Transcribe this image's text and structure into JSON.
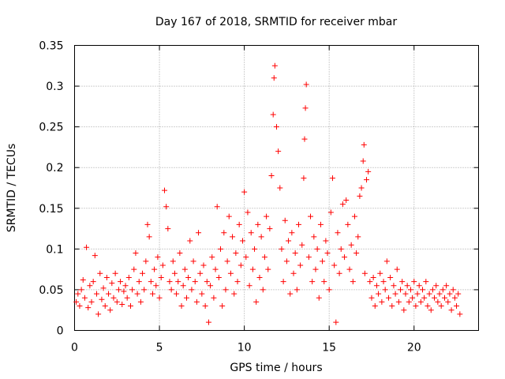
{
  "chart_data": {
    "type": "scatter",
    "title": "Day 167 of 2018, SRMTID for receiver mbar",
    "xlabel": "GPS time / hours",
    "ylabel": "SRMTID / TECUs",
    "xlim": [
      0,
      23.8
    ],
    "ylim": [
      0,
      0.35
    ],
    "xticks": [
      0,
      5,
      10,
      15,
      20
    ],
    "xtick_labels": [
      "0",
      "5",
      "10",
      "15",
      "20"
    ],
    "yticks": [
      0,
      0.05,
      0.1,
      0.15,
      0.2,
      0.25,
      0.3,
      0.35
    ],
    "ytick_labels": [
      "0",
      "0.05",
      "0.1",
      "0.15",
      "0.2",
      "0.25",
      "0.3",
      "0.35"
    ],
    "grid": true,
    "marker": "+",
    "color": "#ff0000",
    "series": [
      {
        "name": "SRMTID",
        "points": [
          [
            0.1,
            0.035
          ],
          [
            0.2,
            0.045
          ],
          [
            0.3,
            0.03
          ],
          [
            0.4,
            0.05
          ],
          [
            0.5,
            0.062
          ],
          [
            0.6,
            0.04
          ],
          [
            0.7,
            0.102
          ],
          [
            0.8,
            0.028
          ],
          [
            0.9,
            0.055
          ],
          [
            1.0,
            0.035
          ],
          [
            1.1,
            0.06
          ],
          [
            1.2,
            0.092
          ],
          [
            1.3,
            0.045
          ],
          [
            1.4,
            0.02
          ],
          [
            1.5,
            0.07
          ],
          [
            1.6,
            0.038
          ],
          [
            1.7,
            0.052
          ],
          [
            1.8,
            0.03
          ],
          [
            1.9,
            0.065
          ],
          [
            2.0,
            0.045
          ],
          [
            2.1,
            0.025
          ],
          [
            2.2,
            0.058
          ],
          [
            2.3,
            0.04
          ],
          [
            2.4,
            0.07
          ],
          [
            2.5,
            0.035
          ],
          [
            2.6,
            0.05
          ],
          [
            2.7,
            0.06
          ],
          [
            2.8,
            0.032
          ],
          [
            2.9,
            0.048
          ],
          [
            3.0,
            0.055
          ],
          [
            3.1,
            0.04
          ],
          [
            3.2,
            0.065
          ],
          [
            3.3,
            0.03
          ],
          [
            3.4,
            0.05
          ],
          [
            3.5,
            0.075
          ],
          [
            3.6,
            0.095
          ],
          [
            3.7,
            0.045
          ],
          [
            3.8,
            0.06
          ],
          [
            3.9,
            0.035
          ],
          [
            4.0,
            0.07
          ],
          [
            4.1,
            0.05
          ],
          [
            4.2,
            0.085
          ],
          [
            4.3,
            0.13
          ],
          [
            4.4,
            0.115
          ],
          [
            4.5,
            0.06
          ],
          [
            4.6,
            0.045
          ],
          [
            4.7,
            0.075
          ],
          [
            4.8,
            0.055
          ],
          [
            4.9,
            0.09
          ],
          [
            5.0,
            0.04
          ],
          [
            5.1,
            0.065
          ],
          [
            5.2,
            0.08
          ],
          [
            5.3,
            0.172
          ],
          [
            5.4,
            0.152
          ],
          [
            5.5,
            0.125
          ],
          [
            5.6,
            0.06
          ],
          [
            5.7,
            0.05
          ],
          [
            5.8,
            0.085
          ],
          [
            5.9,
            0.07
          ],
          [
            6.0,
            0.045
          ],
          [
            6.1,
            0.06
          ],
          [
            6.2,
            0.095
          ],
          [
            6.3,
            0.03
          ],
          [
            6.4,
            0.055
          ],
          [
            6.5,
            0.075
          ],
          [
            6.6,
            0.04
          ],
          [
            6.7,
            0.065
          ],
          [
            6.8,
            0.11
          ],
          [
            6.9,
            0.05
          ],
          [
            7.0,
            0.085
          ],
          [
            7.1,
            0.06
          ],
          [
            7.2,
            0.035
          ],
          [
            7.3,
            0.12
          ],
          [
            7.4,
            0.07
          ],
          [
            7.5,
            0.045
          ],
          [
            7.6,
            0.08
          ],
          [
            7.7,
            0.03
          ],
          [
            7.8,
            0.06
          ],
          [
            7.9,
            0.01
          ],
          [
            8.0,
            0.055
          ],
          [
            8.1,
            0.09
          ],
          [
            8.2,
            0.04
          ],
          [
            8.3,
            0.075
          ],
          [
            8.4,
            0.152
          ],
          [
            8.5,
            0.065
          ],
          [
            8.6,
            0.1
          ],
          [
            8.7,
            0.03
          ],
          [
            8.8,
            0.12
          ],
          [
            8.9,
            0.05
          ],
          [
            9.0,
            0.085
          ],
          [
            9.1,
            0.14
          ],
          [
            9.2,
            0.07
          ],
          [
            9.3,
            0.115
          ],
          [
            9.4,
            0.045
          ],
          [
            9.5,
            0.095
          ],
          [
            9.6,
            0.06
          ],
          [
            9.7,
            0.13
          ],
          [
            9.8,
            0.08
          ],
          [
            9.9,
            0.11
          ],
          [
            10.0,
            0.17
          ],
          [
            10.1,
            0.09
          ],
          [
            10.2,
            0.145
          ],
          [
            10.3,
            0.055
          ],
          [
            10.4,
            0.12
          ],
          [
            10.5,
            0.075
          ],
          [
            10.6,
            0.1
          ],
          [
            10.7,
            0.035
          ],
          [
            10.8,
            0.13
          ],
          [
            10.9,
            0.065
          ],
          [
            11.0,
            0.115
          ],
          [
            11.1,
            0.05
          ],
          [
            11.2,
            0.09
          ],
          [
            11.3,
            0.14
          ],
          [
            11.4,
            0.075
          ],
          [
            11.5,
            0.125
          ],
          [
            11.6,
            0.19
          ],
          [
            11.7,
            0.265
          ],
          [
            11.75,
            0.31
          ],
          [
            11.8,
            0.325
          ],
          [
            11.9,
            0.25
          ],
          [
            12.0,
            0.22
          ],
          [
            12.1,
            0.175
          ],
          [
            12.2,
            0.1
          ],
          [
            12.3,
            0.06
          ],
          [
            12.4,
            0.135
          ],
          [
            12.5,
            0.085
          ],
          [
            12.6,
            0.11
          ],
          [
            12.7,
            0.045
          ],
          [
            12.8,
            0.12
          ],
          [
            12.9,
            0.07
          ],
          [
            13.0,
            0.095
          ],
          [
            13.1,
            0.05
          ],
          [
            13.2,
            0.13
          ],
          [
            13.3,
            0.08
          ],
          [
            13.4,
            0.105
          ],
          [
            13.5,
            0.187
          ],
          [
            13.55,
            0.235
          ],
          [
            13.6,
            0.273
          ],
          [
            13.65,
            0.302
          ],
          [
            13.8,
            0.09
          ],
          [
            13.9,
            0.14
          ],
          [
            14.0,
            0.06
          ],
          [
            14.1,
            0.115
          ],
          [
            14.2,
            0.075
          ],
          [
            14.3,
            0.1
          ],
          [
            14.4,
            0.04
          ],
          [
            14.5,
            0.13
          ],
          [
            14.6,
            0.085
          ],
          [
            14.7,
            0.06
          ],
          [
            14.8,
            0.11
          ],
          [
            14.9,
            0.095
          ],
          [
            15.0,
            0.05
          ],
          [
            15.1,
            0.145
          ],
          [
            15.2,
            0.187
          ],
          [
            15.3,
            0.08
          ],
          [
            15.4,
            0.01
          ],
          [
            15.5,
            0.12
          ],
          [
            15.6,
            0.07
          ],
          [
            15.7,
            0.1
          ],
          [
            15.8,
            0.155
          ],
          [
            15.9,
            0.09
          ],
          [
            16.0,
            0.16
          ],
          [
            16.1,
            0.13
          ],
          [
            16.2,
            0.075
          ],
          [
            16.3,
            0.105
          ],
          [
            16.4,
            0.06
          ],
          [
            16.5,
            0.14
          ],
          [
            16.6,
            0.095
          ],
          [
            16.7,
            0.115
          ],
          [
            16.8,
            0.165
          ],
          [
            16.9,
            0.175
          ],
          [
            17.0,
            0.208
          ],
          [
            17.05,
            0.228
          ],
          [
            17.1,
            0.07
          ],
          [
            17.2,
            0.185
          ],
          [
            17.3,
            0.195
          ],
          [
            17.4,
            0.06
          ],
          [
            17.5,
            0.04
          ],
          [
            17.6,
            0.065
          ],
          [
            17.7,
            0.03
          ],
          [
            17.8,
            0.055
          ],
          [
            17.9,
            0.045
          ],
          [
            18.0,
            0.07
          ],
          [
            18.1,
            0.035
          ],
          [
            18.2,
            0.06
          ],
          [
            18.3,
            0.05
          ],
          [
            18.4,
            0.085
          ],
          [
            18.5,
            0.04
          ],
          [
            18.6,
            0.065
          ],
          [
            18.7,
            0.03
          ],
          [
            18.8,
            0.055
          ],
          [
            18.9,
            0.045
          ],
          [
            19.0,
            0.075
          ],
          [
            19.1,
            0.035
          ],
          [
            19.2,
            0.05
          ],
          [
            19.3,
            0.06
          ],
          [
            19.4,
            0.025
          ],
          [
            19.5,
            0.045
          ],
          [
            19.6,
            0.055
          ],
          [
            19.7,
            0.035
          ],
          [
            19.8,
            0.05
          ],
          [
            19.9,
            0.04
          ],
          [
            20.0,
            0.06
          ],
          [
            20.1,
            0.03
          ],
          [
            20.2,
            0.045
          ],
          [
            20.3,
            0.055
          ],
          [
            20.4,
            0.035
          ],
          [
            20.5,
            0.05
          ],
          [
            20.6,
            0.04
          ],
          [
            20.7,
            0.06
          ],
          [
            20.8,
            0.03
          ],
          [
            20.9,
            0.045
          ],
          [
            21.0,
            0.025
          ],
          [
            21.1,
            0.05
          ],
          [
            21.2,
            0.04
          ],
          [
            21.3,
            0.055
          ],
          [
            21.4,
            0.035
          ],
          [
            21.5,
            0.045
          ],
          [
            21.6,
            0.03
          ],
          [
            21.7,
            0.05
          ],
          [
            21.8,
            0.04
          ],
          [
            21.9,
            0.055
          ],
          [
            22.0,
            0.035
          ],
          [
            22.1,
            0.045
          ],
          [
            22.2,
            0.025
          ],
          [
            22.3,
            0.05
          ],
          [
            22.4,
            0.04
          ],
          [
            22.5,
            0.03
          ],
          [
            22.6,
            0.045
          ],
          [
            22.7,
            0.02
          ]
        ]
      }
    ]
  }
}
